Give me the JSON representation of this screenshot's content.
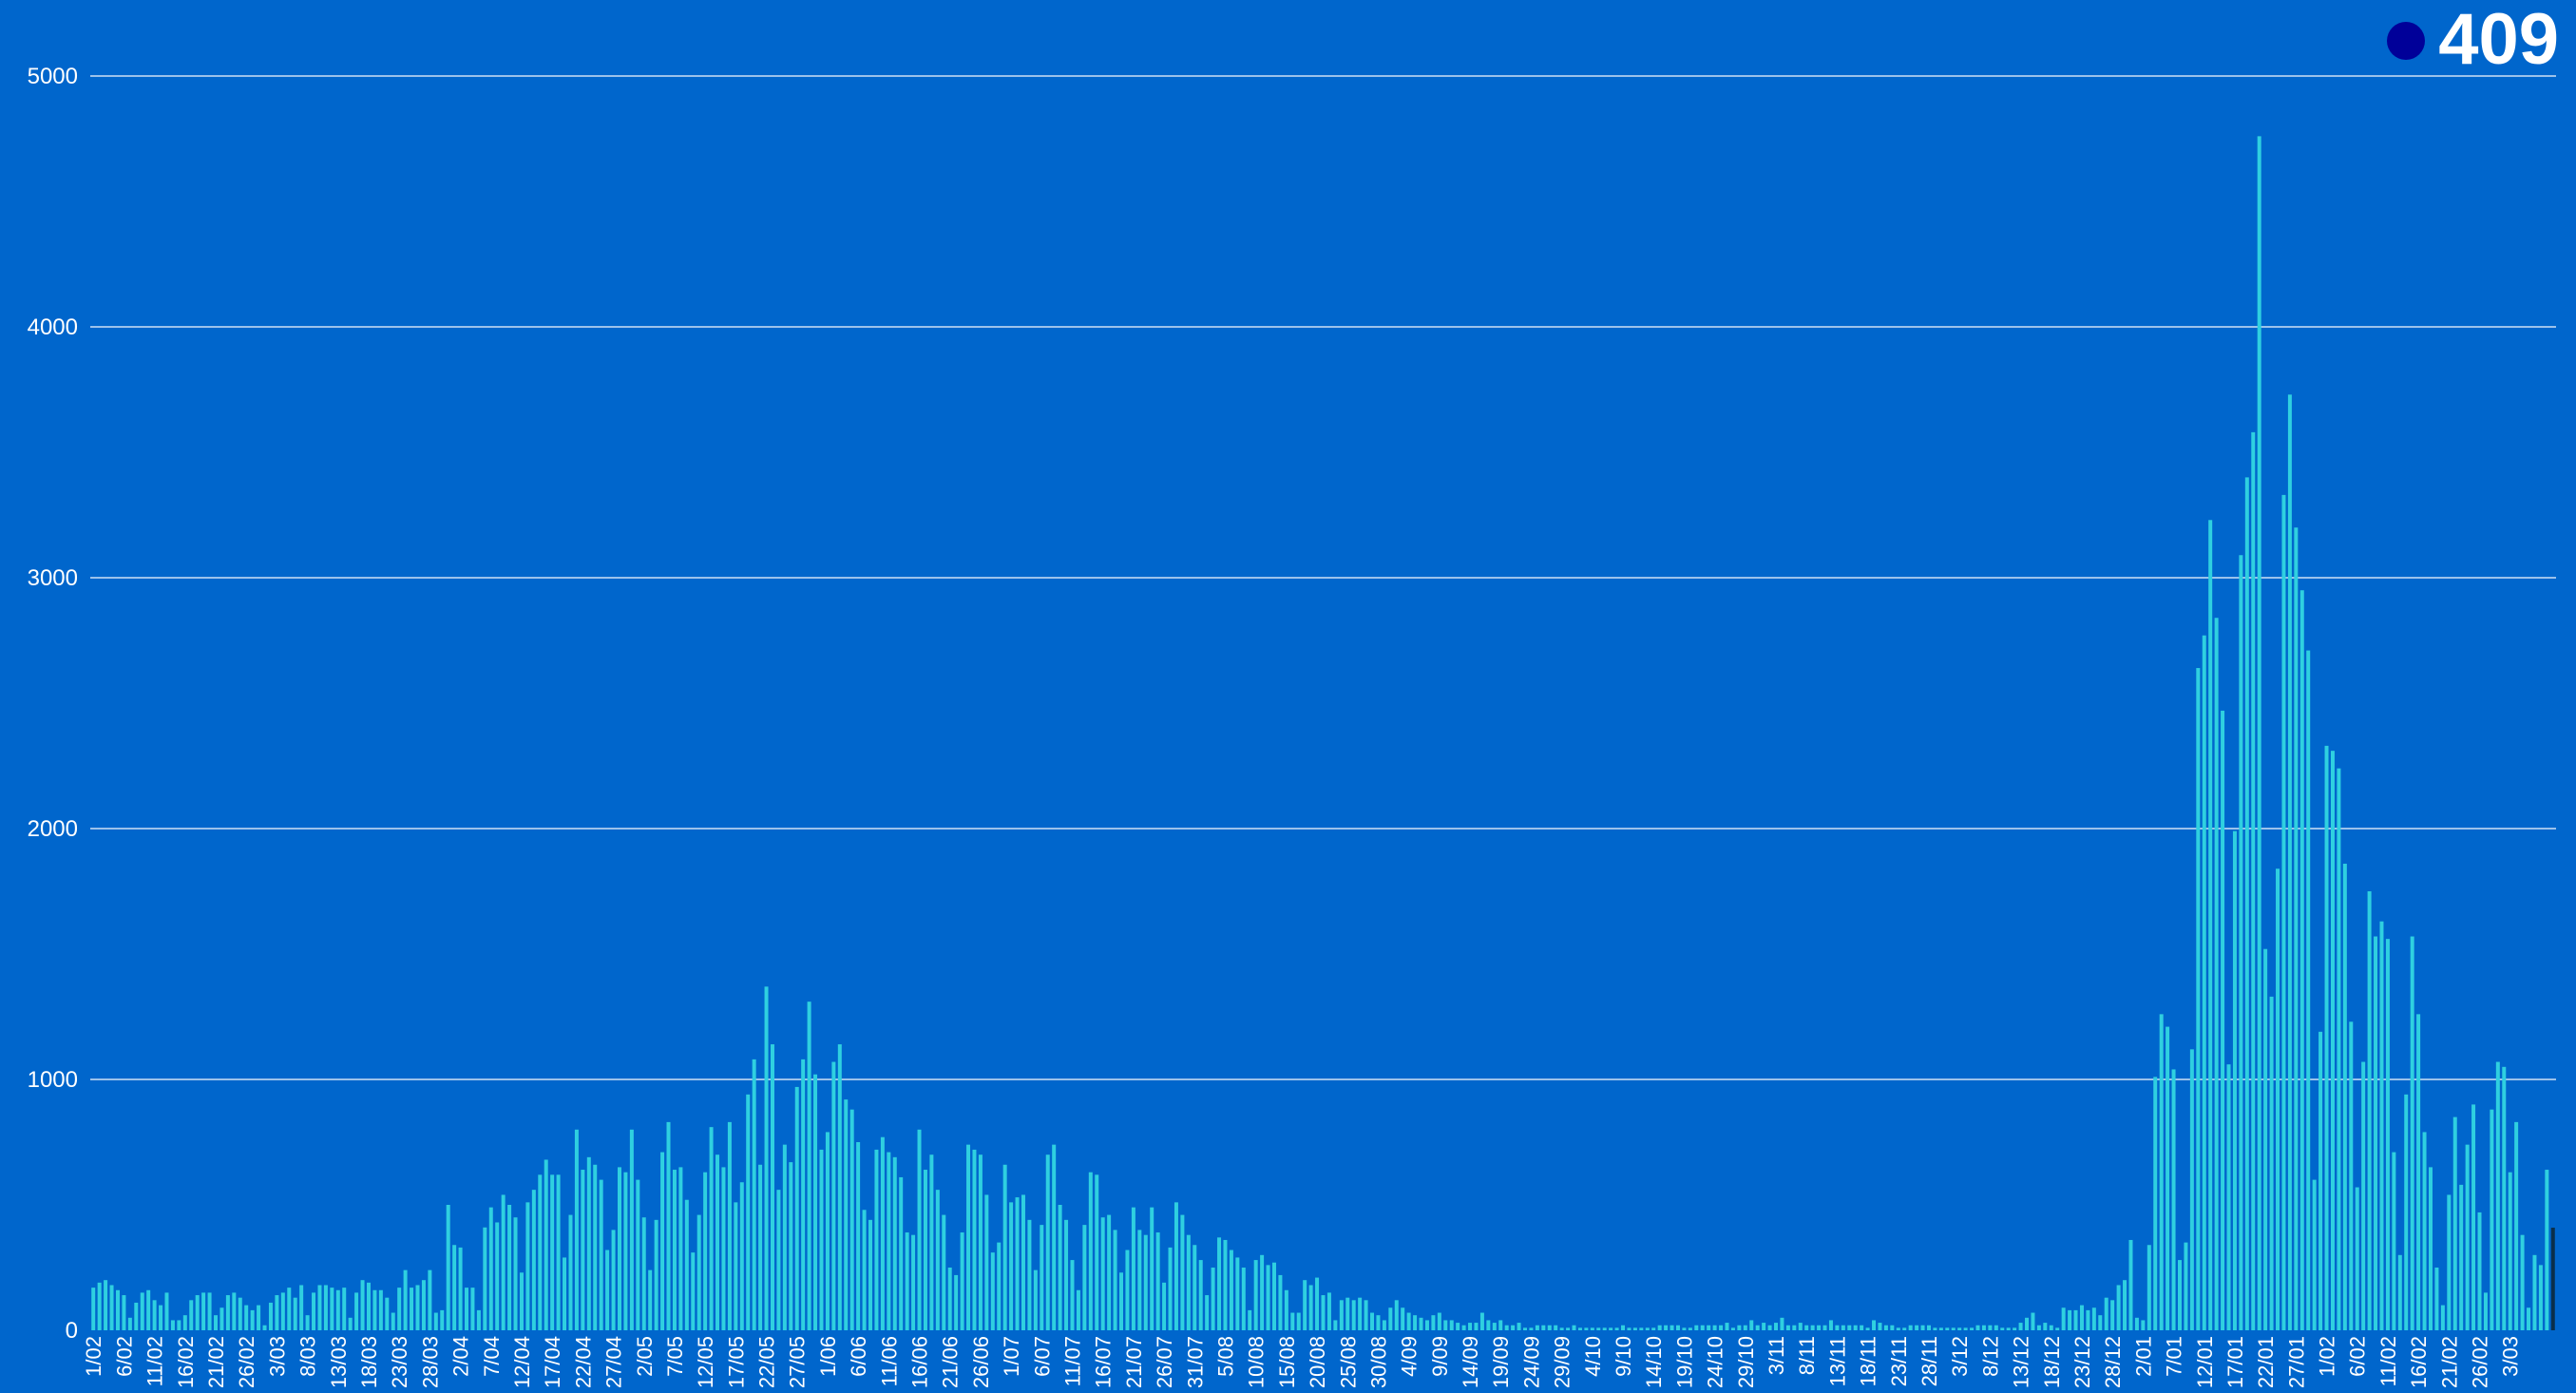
{
  "chart_data": {
    "type": "bar",
    "title": "",
    "xlabel": "",
    "ylabel": "",
    "ylim": [
      0,
      5000
    ],
    "y_ticks": [
      0,
      1000,
      2000,
      3000,
      4000,
      5000
    ],
    "y_tick_labels": [
      "0",
      "1000",
      "2000",
      "3000",
      "4000",
      "5000"
    ],
    "grid": "horizontal",
    "bar_color": "#2fd0e0",
    "last_bar_color": "#0a2f4a",
    "x_tick_labels": [
      "1/02",
      "6/02",
      "11/02",
      "16/02",
      "21/02",
      "26/02",
      "3/03",
      "8/03",
      "13/03",
      "18/03",
      "23/03",
      "28/03",
      "2/04",
      "7/04",
      "12/04",
      "17/04",
      "22/04",
      "27/04",
      "2/05",
      "7/05",
      "12/05",
      "17/05",
      "22/05",
      "27/05",
      "1/06",
      "6/06",
      "11/06",
      "16/06",
      "21/06",
      "26/06",
      "1/07",
      "6/07",
      "11/07",
      "16/07",
      "21/07",
      "26/07",
      "31/07",
      "5/08",
      "10/08",
      "15/08",
      "20/08",
      "25/08",
      "30/08",
      "4/09",
      "9/09",
      "14/09",
      "19/09",
      "24/09",
      "29/09",
      "4/10",
      "9/10",
      "14/10",
      "19/10",
      "24/10",
      "29/10",
      "3/11",
      "8/11",
      "13/11",
      "18/11",
      "23/11",
      "28/11",
      "3/12",
      "8/12",
      "13/12",
      "18/12",
      "23/12",
      "28/12",
      "2/01",
      "7/01",
      "12/01",
      "17/01",
      "22/01",
      "27/01",
      "1/02",
      "6/02",
      "11/02",
      "16/02",
      "21/02",
      "26/02",
      "3/03"
    ],
    "values": [
      170,
      190,
      200,
      180,
      160,
      140,
      50,
      110,
      150,
      160,
      120,
      100,
      150,
      40,
      40,
      60,
      120,
      140,
      150,
      150,
      60,
      90,
      140,
      150,
      130,
      100,
      80,
      100,
      20,
      110,
      140,
      150,
      170,
      130,
      180,
      60,
      150,
      180,
      180,
      170,
      160,
      170,
      50,
      150,
      200,
      190,
      160,
      160,
      130,
      70,
      170,
      240,
      170,
      180,
      200,
      240,
      70,
      80,
      500,
      340,
      330,
      170,
      170,
      80,
      410,
      490,
      430,
      540,
      500,
      450,
      230,
      510,
      560,
      620,
      680,
      620,
      620,
      290,
      460,
      800,
      640,
      690,
      660,
      600,
      320,
      400,
      650,
      630,
      800,
      600,
      450,
      240,
      440,
      710,
      830,
      640,
      650,
      520,
      310,
      460,
      630,
      810,
      700,
      650,
      830,
      510,
      590,
      940,
      1080,
      660,
      1370,
      1140,
      560,
      740,
      670,
      970,
      1080,
      1310,
      1020,
      720,
      790,
      1070,
      1140,
      920,
      880,
      750,
      480,
      440,
      720,
      770,
      710,
      690,
      610,
      390,
      380,
      800,
      640,
      700,
      560,
      460,
      250,
      220,
      390,
      740,
      720,
      700,
      540,
      310,
      350,
      660,
      510,
      530,
      540,
      440,
      240,
      420,
      700,
      740,
      500,
      440,
      280,
      160,
      420,
      630,
      620,
      450,
      460,
      400,
      230,
      320,
      490,
      400,
      380,
      490,
      390,
      190,
      330,
      510,
      460,
      380,
      340,
      280,
      140,
      250,
      370,
      360,
      320,
      290,
      250,
      80,
      280,
      300,
      260,
      270,
      220,
      160,
      70,
      70,
      200,
      180,
      210,
      140,
      150,
      40,
      120,
      130,
      120,
      130,
      120,
      70,
      60,
      40,
      90,
      120,
      90,
      70,
      60,
      50,
      40,
      60,
      70,
      40,
      40,
      30,
      20,
      30,
      30,
      70,
      40,
      30,
      40,
      20,
      20,
      30,
      10,
      10,
      20,
      20,
      20,
      20,
      10,
      10,
      20,
      10,
      10,
      10,
      10,
      10,
      10,
      10,
      20,
      10,
      10,
      10,
      10,
      10,
      20,
      20,
      20,
      20,
      10,
      10,
      20,
      20,
      20,
      20,
      20,
      30,
      10,
      20,
      20,
      40,
      20,
      30,
      20,
      30,
      50,
      20,
      20,
      30,
      20,
      20,
      20,
      20,
      40,
      20,
      20,
      20,
      20,
      20,
      10,
      40,
      30,
      20,
      20,
      10,
      10,
      20,
      20,
      20,
      20,
      10,
      10,
      10,
      10,
      10,
      10,
      10,
      20,
      20,
      20,
      20,
      10,
      10,
      10,
      30,
      50,
      70,
      20,
      30,
      20,
      10,
      90,
      80,
      80,
      100,
      80,
      90,
      60,
      130,
      120,
      180,
      200,
      360,
      50,
      40,
      340,
      1010,
      1260,
      1210,
      1040,
      280,
      350,
      1120,
      2640,
      2770,
      3230,
      2840,
      2470,
      1060,
      1990,
      3090,
      3400,
      3580,
      4760,
      1520,
      1330,
      1840,
      3330,
      3730,
      3200,
      2950,
      2710,
      600,
      1190,
      2330,
      2310,
      2240,
      1860,
      1230,
      570,
      1070,
      1750,
      1570,
      1630,
      1560,
      710,
      300,
      940,
      1570,
      1260,
      790,
      650,
      250,
      100,
      540,
      850,
      580,
      740,
      900,
      470,
      150,
      880,
      1070,
      1050,
      630,
      830,
      380,
      90,
      300,
      260,
      640,
      409
    ],
    "highlight": {
      "value": "409"
    }
  }
}
